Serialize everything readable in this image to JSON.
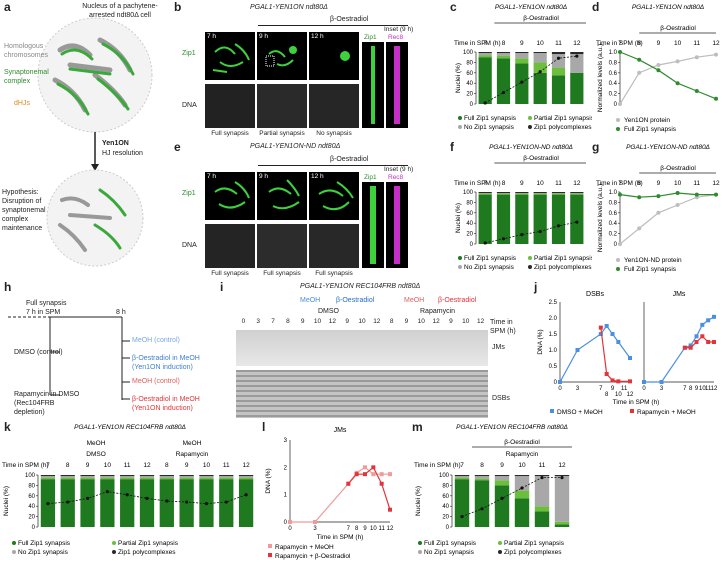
{
  "panel_letters": [
    "a",
    "b",
    "c",
    "d",
    "e",
    "f",
    "g",
    "h",
    "i",
    "j",
    "k",
    "l",
    "m"
  ],
  "panel_a": {
    "title": "Nucleus of a pachytene-arrested ndt80Δ cell",
    "labels": [
      "Homologous chromosomes",
      "Synaptonemal complex",
      "dHJs"
    ],
    "arrow_label": "Yen1ON",
    "arrow_sublabel": "HJ resolution",
    "hypothesis": "Hypothesis: Disruption of synaptonemal complex maintenance"
  },
  "panel_b": {
    "genotype": "PGAL1-YEN1ON ndt80Δ",
    "treatment": "β-Oestradiol",
    "times": [
      "7 h",
      "9 h",
      "12 h"
    ],
    "inset": "Inset (9 h)",
    "rows": [
      "Zip1",
      "DNA"
    ],
    "inset_labels": [
      "Zip1",
      "Rec8"
    ],
    "captions": [
      "Full synapsis",
      "Partial synapsis",
      "No synapsis"
    ]
  },
  "panel_e": {
    "genotype": "PGAL1-YEN1ON-ND ndt80Δ",
    "treatment": "β-Oestradiol",
    "times": [
      "7 h",
      "9 h",
      "12 h"
    ],
    "inset": "Inset (9 h)",
    "rows": [
      "Zip1",
      "DNA"
    ],
    "inset_labels": [
      "Zip1",
      "Rec8"
    ],
    "captions": [
      "Full synapsis",
      "Full synapsis",
      "Full synapsis"
    ]
  },
  "legend_zip1": [
    "Full Zip1 synapsis",
    "Partial Zip1 synapsis",
    "No Zip1 synapsis",
    "Zip1 polycomplexes"
  ],
  "panel_h": {
    "full_synapsis": "Full synapsis",
    "time_note": "7 h in SPM",
    "t8": "8 h",
    "dmso": "DMSO (control)",
    "rapa": "Rapamycin in DMSO (Rec104FRB depletion)",
    "meoh_ctrl": "MeOH (control)",
    "oest_meoh": "β-Oestradiol in MeOH (Yen1ON induction)"
  },
  "panel_i": {
    "genotype": "PGAL1-YEN1ON REC104FRB ndt80Δ",
    "groups": [
      "MeOH",
      "β-Oestradiol",
      "MeOH",
      "β-Oestradiol"
    ],
    "drugs": [
      "DMSO",
      "Rapamycin"
    ],
    "lanes": [
      "0",
      "3",
      "7",
      "8",
      "9",
      "10",
      "12",
      "9",
      "10",
      "12",
      "8",
      "9",
      "10",
      "12",
      "9",
      "10",
      "12"
    ],
    "time_label": "Time in SPM (h)",
    "bands": [
      "JMs",
      "DSBs"
    ]
  },
  "panel_k": {
    "genotype": "PGAL1-YEN1ON REC104FRB ndt80Δ",
    "groups": [
      "MeOH",
      "MeOH"
    ],
    "drugs": [
      "DMSO",
      "Rapamycin"
    ]
  },
  "panel_m": {
    "genotype": "PGAL1-YEN1ON REC104FRB ndt80Δ",
    "treatment": "β-Oestradiol",
    "drug": "Rapamycin"
  },
  "colors": {
    "full": "#1f7a1f",
    "partial": "#6cbf3c",
    "none": "#a8a8a8",
    "poly": "#2a2a2a",
    "blue": "#4a8fe0",
    "red": "#e3343a",
    "pink": "#f09a9a",
    "grey": "#bdbdbd",
    "green": "#2e8b2e"
  },
  "chart_data": [
    {
      "id": "c",
      "type": "bar",
      "title": "PGAL1-YEN1ON ndt80Δ",
      "annotation": "β-Oestradiol",
      "xlabel": "Time in SPM (h)",
      "ylabel": "Nuclei (%)",
      "categories": [
        "7",
        "8",
        "9",
        "10",
        "11",
        "12"
      ],
      "series": [
        {
          "name": "Full Zip1 synapsis",
          "values": [
            90,
            88,
            78,
            60,
            55,
            60
          ]
        },
        {
          "name": "Partial Zip1 synapsis",
          "values": [
            4,
            5,
            10,
            20,
            15,
            0
          ]
        },
        {
          "name": "No Zip1 synapsis",
          "values": [
            4,
            5,
            10,
            18,
            26,
            36
          ]
        },
        {
          "name": "Zip1 polycomplexes",
          "values": [
            2,
            2,
            2,
            2,
            4,
            4
          ]
        }
      ],
      "line": [
        2,
        22,
        42,
        62,
        88,
        92
      ],
      "ylim": [
        0,
        100
      ],
      "yticks": [
        "0",
        "20",
        "40",
        "60",
        "80",
        "100"
      ]
    },
    {
      "id": "d",
      "type": "line",
      "title": "PGAL1-YEN1ON ndt80Δ",
      "annotation": "β-Oestradiol",
      "xlabel": "Time in SPM (h)",
      "ylabel": "Normalized levels (a.u.)",
      "categories": [
        "7",
        "8",
        "9",
        "10",
        "11",
        "12"
      ],
      "series": [
        {
          "name": "Yen1ON protein",
          "values": [
            0.0,
            0.6,
            0.75,
            0.82,
            0.9,
            0.95
          ]
        },
        {
          "name": "Full Zip1 synapsis",
          "values": [
            1.0,
            0.85,
            0.65,
            0.4,
            0.25,
            0.1
          ]
        }
      ],
      "ylim": [
        0,
        1.0
      ],
      "yticks": [
        "0",
        "0.2",
        "0.4",
        "0.6",
        "0.8",
        "1.0"
      ]
    },
    {
      "id": "f",
      "type": "bar",
      "title": "PGAL1-YEN1ON-ND ndt80Δ",
      "annotation": "β-Oestradiol",
      "xlabel": "Time in SPM (h)",
      "ylabel": "Nuclei (%)",
      "categories": [
        "7",
        "8",
        "9",
        "10",
        "11",
        "12"
      ],
      "series": [
        {
          "name": "Full Zip1 synapsis",
          "values": [
            95,
            95,
            95,
            95,
            95,
            95
          ]
        },
        {
          "name": "Partial Zip1 synapsis",
          "values": [
            2,
            2,
            2,
            2,
            2,
            2
          ]
        },
        {
          "name": "No Zip1 synapsis",
          "values": [
            1,
            1,
            1,
            1,
            1,
            1
          ]
        },
        {
          "name": "Zip1 polycomplexes",
          "values": [
            2,
            2,
            2,
            2,
            2,
            2
          ]
        }
      ],
      "line": [
        2,
        10,
        18,
        24,
        35,
        42
      ],
      "ylim": [
        0,
        100
      ],
      "yticks": [
        "0",
        "20",
        "40",
        "60",
        "80",
        "100"
      ]
    },
    {
      "id": "g",
      "type": "line",
      "title": "PGAL1-YEN1ON-ND ndt80Δ",
      "annotation": "β-Oestradiol",
      "xlabel": "Time in SPM (h)",
      "ylabel": "Normalized levels (a.u.)",
      "categories": [
        "7",
        "8",
        "9",
        "10",
        "11",
        "12"
      ],
      "series": [
        {
          "name": "Yen1ON-ND protein",
          "values": [
            0.0,
            0.3,
            0.6,
            0.75,
            0.9,
            0.95
          ]
        },
        {
          "name": "Full Zip1 synapsis",
          "values": [
            0.95,
            0.9,
            0.92,
            0.98,
            0.95,
            0.95
          ]
        }
      ],
      "ylim": [
        0,
        1.0
      ],
      "yticks": [
        "0",
        "0.2",
        "0.4",
        "0.6",
        "0.8",
        "1.0"
      ]
    },
    {
      "id": "j1",
      "type": "line",
      "title": "DSBs",
      "xlabel": "Time in SPM (h)",
      "ylabel": "DNA (%)",
      "x": [
        0,
        3,
        7,
        8,
        9,
        10,
        12
      ],
      "series": [
        {
          "name": "DMSO + MeOH",
          "values": [
            0,
            1.0,
            1.5,
            1.75,
            1.5,
            1.25,
            0.75
          ]
        },
        {
          "name": "Rapamycin + MeOH",
          "values": [
            null,
            null,
            1.7,
            0.25,
            0.05,
            0.02,
            0.02
          ]
        }
      ],
      "ylim": [
        0,
        2.5
      ],
      "yticks": [
        "0",
        "0.5",
        "1.0",
        "1.5",
        "2.0",
        "2.5"
      ],
      "xticks": [
        "0",
        "3",
        "7",
        "9",
        "11",
        "8",
        "10",
        "12"
      ]
    },
    {
      "id": "j2",
      "type": "line",
      "title": "JMs",
      "xlabel": "Time in SPM (h)",
      "x": [
        0,
        3,
        7,
        8,
        9,
        10,
        11,
        12
      ],
      "series": [
        {
          "name": "DMSO + MeOH",
          "values": [
            0,
            0,
            1.5,
            1.6,
            2.0,
            2.5,
            2.7,
            2.85
          ]
        },
        {
          "name": "Rapamycin + MeOH",
          "values": [
            null,
            null,
            1.5,
            1.5,
            1.75,
            2.0,
            1.75,
            1.75
          ]
        }
      ],
      "ylim": [
        0,
        3.5
      ],
      "yticks": []
    },
    {
      "id": "k",
      "type": "bar",
      "title": "PGAL1-YEN1ON REC104FRB ndt80Δ",
      "xlabel": "Time in SPM (h)",
      "ylabel": "Nuclei (%)",
      "categories": [
        "7",
        "8",
        "9",
        "10",
        "11",
        "12",
        "8",
        "9",
        "10",
        "11",
        "12"
      ],
      "series": [
        {
          "name": "Full Zip1 synapsis",
          "values": [
            92,
            92,
            92,
            92,
            92,
            92,
            92,
            92,
            92,
            92,
            92
          ]
        },
        {
          "name": "Partial Zip1 synapsis",
          "values": [
            3,
            3,
            3,
            3,
            3,
            3,
            3,
            3,
            3,
            3,
            3
          ]
        },
        {
          "name": "No Zip1 synapsis",
          "values": [
            3,
            3,
            3,
            3,
            3,
            3,
            3,
            3,
            3,
            3,
            3
          ]
        },
        {
          "name": "Zip1 polycomplexes",
          "values": [
            2,
            2,
            2,
            2,
            2,
            2,
            2,
            2,
            2,
            2,
            2
          ]
        }
      ],
      "line": [
        45,
        48,
        55,
        68,
        62,
        55,
        50,
        48,
        45,
        48,
        62
      ],
      "ylim": [
        0,
        100
      ],
      "yticks": [
        "0",
        "20",
        "40",
        "60",
        "80",
        "100"
      ]
    },
    {
      "id": "l",
      "type": "line",
      "title": "JMs",
      "xlabel": "Time in SPM (h)",
      "ylabel": "DNA (%)",
      "x": [
        0,
        3,
        7,
        8,
        9,
        10,
        11,
        12
      ],
      "series": [
        {
          "name": "Rapamycin + MeOH",
          "values": [
            0,
            0,
            1.4,
            1.8,
            2.0,
            1.75,
            1.75,
            1.75
          ]
        },
        {
          "name": "Rapamycin + β-Oestradiol",
          "values": [
            null,
            null,
            1.4,
            1.75,
            1.75,
            2.0,
            1.4,
            0.45
          ]
        }
      ],
      "ylim": [
        0,
        3.0
      ],
      "yticks": [
        "0",
        "1",
        "2",
        "3"
      ],
      "xticks": [
        "0",
        "3",
        "7",
        "8",
        "9",
        "10",
        "11",
        "12"
      ]
    },
    {
      "id": "m",
      "type": "bar",
      "title": "PGAL1-YEN1ON REC104FRB ndt80Δ",
      "annotation": "β-Oestradiol",
      "xlabel": "Time in SPM (h)",
      "ylabel": "Nuclei (%)",
      "categories": [
        "7",
        "8",
        "9",
        "10",
        "11",
        "12"
      ],
      "series": [
        {
          "name": "Full Zip1 synapsis",
          "values": [
            92,
            90,
            80,
            55,
            30,
            5
          ]
        },
        {
          "name": "Partial Zip1 synapsis",
          "values": [
            3,
            3,
            10,
            15,
            10,
            5
          ]
        },
        {
          "name": "No Zip1 synapsis",
          "values": [
            3,
            5,
            8,
            28,
            58,
            88
          ]
        },
        {
          "name": "Zip1 polycomplexes",
          "values": [
            2,
            2,
            2,
            2,
            2,
            2
          ]
        }
      ],
      "line": [
        20,
        35,
        55,
        75,
        95,
        95
      ],
      "ylim": [
        0,
        100
      ],
      "yticks": [
        "0",
        "20",
        "40",
        "60",
        "80",
        "100"
      ]
    }
  ]
}
